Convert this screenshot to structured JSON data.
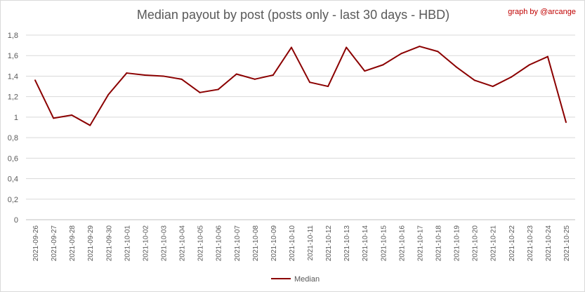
{
  "chart_data": {
    "type": "line",
    "title": "Median payout by post (posts only - last 30 days - HBD)",
    "credit": "graph by @arcange",
    "xlabel": "",
    "ylabel": "",
    "ylim": [
      0,
      1.8
    ],
    "yticks": [
      "0",
      "0,2",
      "0,4",
      "0,6",
      "0,8",
      "1",
      "1,2",
      "1,4",
      "1,6",
      "1,8"
    ],
    "grid": true,
    "legend_position": "bottom",
    "line_color": "#8b0000",
    "categories": [
      "2021-09-26",
      "2021-09-27",
      "2021-09-28",
      "2021-09-29",
      "2021-09-30",
      "2021-10-01",
      "2021-10-02",
      "2021-10-03",
      "2021-10-04",
      "2021-10-05",
      "2021-10-06",
      "2021-10-07",
      "2021-10-08",
      "2021-10-09",
      "2021-10-10",
      "2021-10-11",
      "2021-10-12",
      "2021-10-13",
      "2021-10-14",
      "2021-10-15",
      "2021-10-16",
      "2021-10-17",
      "2021-10-18",
      "2021-10-19",
      "2021-10-20",
      "2021-10-21",
      "2021-10-22",
      "2021-10-23",
      "2021-10-24",
      "2021-10-25"
    ],
    "series": [
      {
        "name": "Median",
        "values": [
          1.36,
          0.99,
          1.02,
          0.92,
          1.22,
          1.43,
          1.41,
          1.4,
          1.37,
          1.24,
          1.27,
          1.42,
          1.37,
          1.41,
          1.68,
          1.34,
          1.3,
          1.68,
          1.45,
          1.51,
          1.62,
          1.69,
          1.64,
          1.49,
          1.36,
          1.3,
          1.39,
          1.51,
          1.59,
          0.95
        ]
      }
    ]
  }
}
